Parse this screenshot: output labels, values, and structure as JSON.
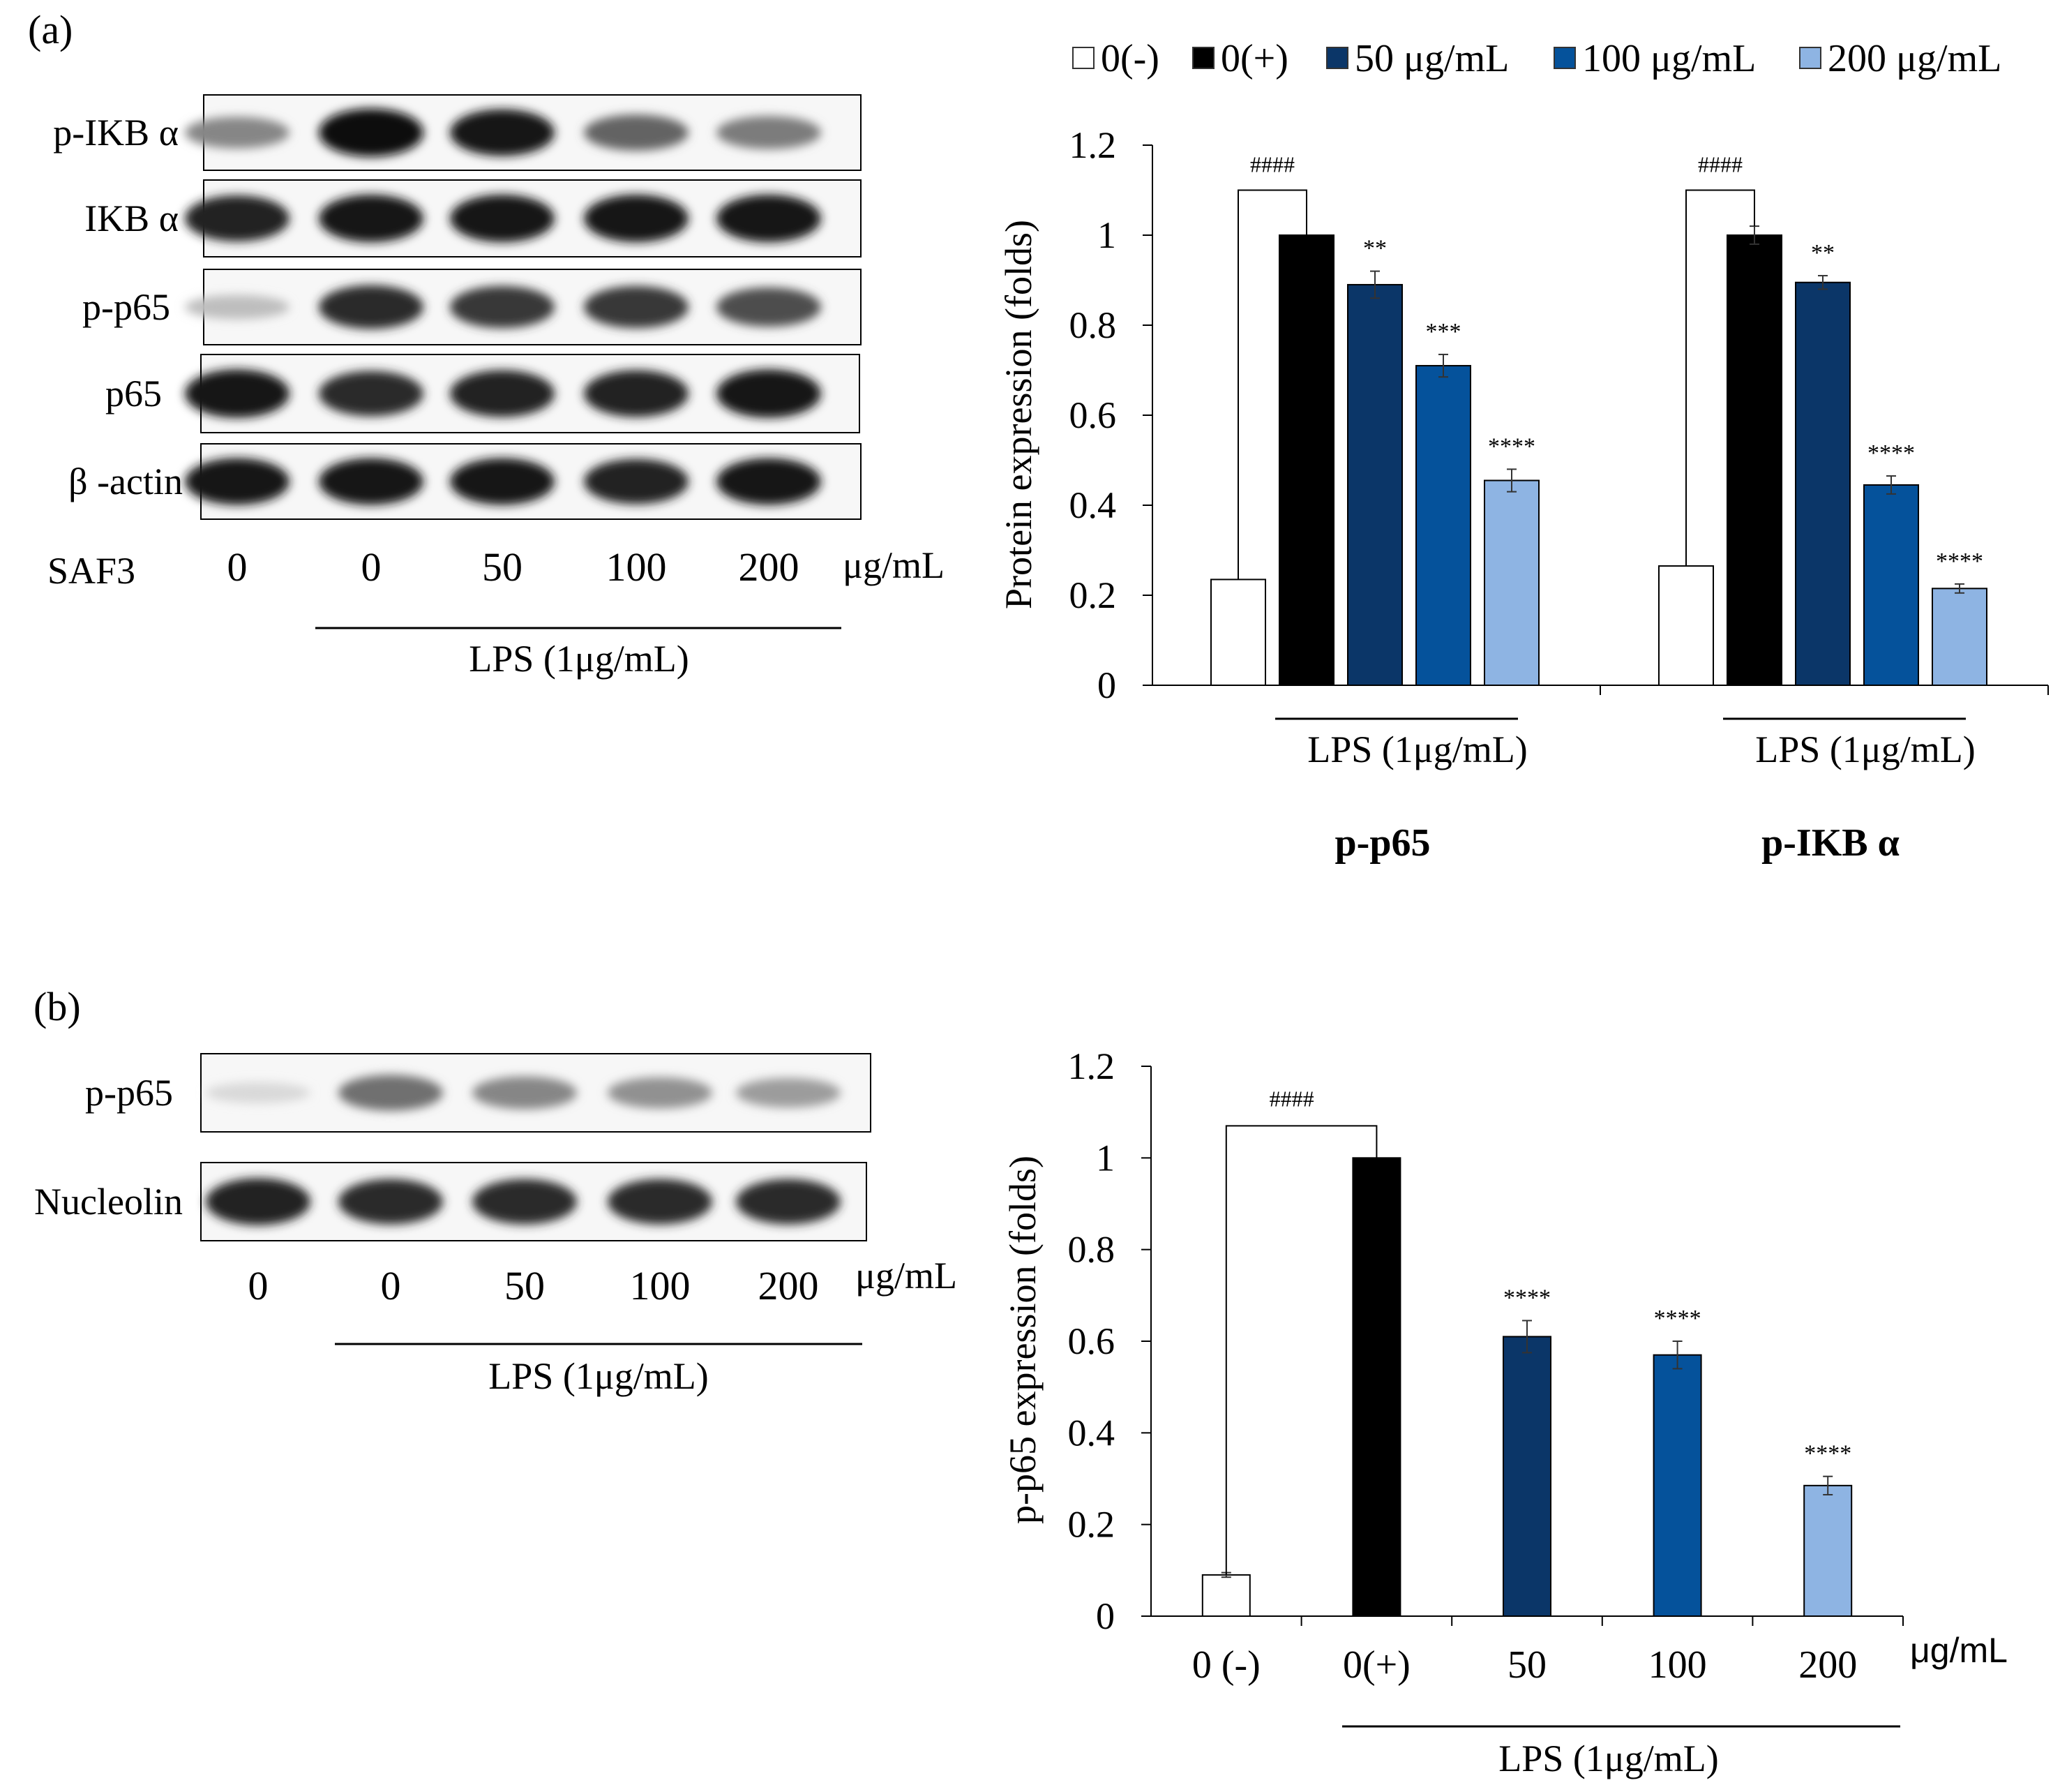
{
  "panel_a": {
    "label": "(a)",
    "blot": {
      "rows": [
        {
          "label": "p-IKB α",
          "intensity": [
            0.45,
            1.0,
            0.95,
            0.6,
            0.5
          ]
        },
        {
          "label": "IKB α",
          "intensity": [
            0.9,
            0.95,
            0.95,
            0.95,
            0.95
          ]
        },
        {
          "label": "p-p65",
          "intensity": [
            0.2,
            0.85,
            0.8,
            0.8,
            0.7
          ]
        },
        {
          "label": "p65",
          "intensity": [
            0.95,
            0.85,
            0.9,
            0.9,
            0.95
          ]
        },
        {
          "label": "β -actin",
          "intensity": [
            0.95,
            0.95,
            0.95,
            0.9,
            0.95
          ]
        }
      ],
      "treatment_label": "SAF3",
      "doses": [
        "0",
        "0",
        "50",
        "100",
        "200"
      ],
      "unit": "μg/mL",
      "lps_label": "LPS (1μg/mL)"
    }
  },
  "panel_b": {
    "label": "(b)",
    "blot": {
      "rows": [
        {
          "label": "p-p65",
          "intensity": [
            0.08,
            0.55,
            0.45,
            0.4,
            0.35
          ]
        },
        {
          "label": "Nucleolin",
          "intensity": [
            0.9,
            0.85,
            0.85,
            0.85,
            0.85
          ]
        }
      ],
      "doses": [
        "0",
        "0",
        "50",
        "100",
        "200"
      ],
      "unit": "μg/mL",
      "lps_label": "LPS (1μg/mL)"
    }
  },
  "legend": [
    {
      "label": "0(-)",
      "color": "#ffffff"
    },
    {
      "label": "0(+)",
      "color": "#000000"
    },
    {
      "label": "50 μg/mL",
      "color": "#0b3668"
    },
    {
      "label": "100 μg/mL",
      "color": "#05529b"
    },
    {
      "label": "200 μg/mL",
      "color": "#8eb4e3"
    }
  ],
  "chart_data": [
    {
      "type": "bar",
      "title": "",
      "ylabel": "Protein expression (folds)",
      "ylim": [
        0,
        1.2
      ],
      "yticks": [
        "0",
        "0.2",
        "0.4",
        "0.6",
        "0.8",
        "1",
        "1.2"
      ],
      "groups": [
        {
          "name": "p-p65",
          "lps_label": "LPS (1μg/mL)",
          "values": [
            0.235,
            1.0,
            0.89,
            0.71,
            0.455
          ],
          "errors": [
            0.0,
            0.0,
            0.03,
            0.025,
            0.025
          ],
          "annotations": [
            "",
            "",
            "**",
            "***",
            "****"
          ],
          "bracket_label": "####"
        },
        {
          "name": "p-IKB α",
          "lps_label": "LPS (1μg/mL)",
          "values": [
            0.265,
            1.0,
            0.895,
            0.445,
            0.215
          ],
          "errors": [
            0.0,
            0.02,
            0.015,
            0.02,
            0.01
          ],
          "annotations": [
            "",
            "",
            "**",
            "****",
            "****"
          ],
          "bracket_label": "####"
        }
      ]
    },
    {
      "type": "bar",
      "title": "",
      "ylabel": "p-p65 expression (folds)",
      "ylim": [
        0,
        1.2
      ],
      "yticks": [
        "0",
        "0.2",
        "0.4",
        "0.6",
        "0.8",
        "1",
        "1.2"
      ],
      "categories": [
        "0 (-)",
        "0(+)",
        "50",
        "100",
        "200"
      ],
      "x_unit": "μg/mL",
      "lps_label": "LPS (1μg/mL)",
      "values": [
        0.09,
        1.0,
        0.61,
        0.57,
        0.285
      ],
      "errors": [
        0.005,
        0.0,
        0.035,
        0.03,
        0.02
      ],
      "annotations": [
        "",
        "",
        "****",
        "****",
        "****"
      ],
      "bracket_label": "####"
    }
  ]
}
